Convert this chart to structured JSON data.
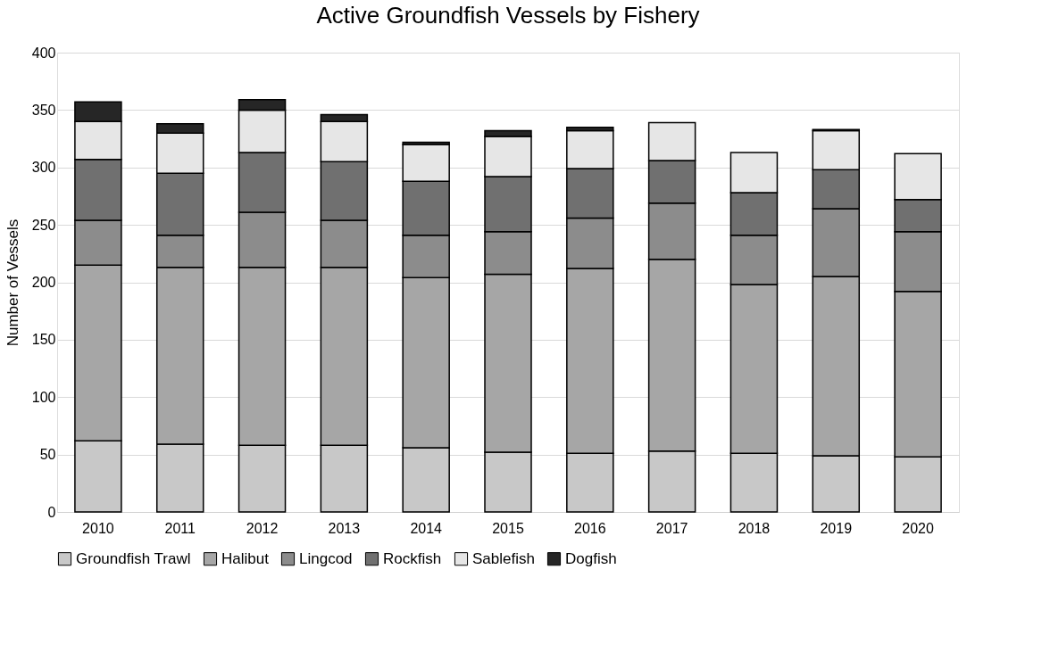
{
  "chart_data": {
    "type": "bar",
    "stacked": true,
    "title": "Active Groundfish Vessels by Fishery",
    "ylabel": "Number of Vessels",
    "categories": [
      "2010",
      "2011",
      "2012",
      "2013",
      "2014",
      "2015",
      "2016",
      "2017",
      "2018",
      "2019",
      "2020"
    ],
    "series": [
      {
        "name": "Groundfish Trawl",
        "color": "#c8c8c8",
        "values": [
          62,
          59,
          58,
          58,
          56,
          52,
          51,
          53,
          51,
          49,
          48
        ]
      },
      {
        "name": "Halibut",
        "color": "#a6a6a6",
        "values": [
          153,
          154,
          155,
          155,
          148,
          155,
          161,
          167,
          147,
          156,
          144
        ]
      },
      {
        "name": "Lingcod",
        "color": "#8c8c8c",
        "values": [
          39,
          28,
          48,
          41,
          37,
          37,
          44,
          49,
          43,
          59,
          52
        ]
      },
      {
        "name": "Rockfish",
        "color": "#707070",
        "values": [
          53,
          54,
          52,
          51,
          47,
          48,
          43,
          37,
          37,
          34,
          28
        ]
      },
      {
        "name": "Sablefish",
        "color": "#e6e6e6",
        "values": [
          33,
          35,
          37,
          35,
          32,
          35,
          33,
          33,
          35,
          34,
          40
        ]
      },
      {
        "name": "Dogfish",
        "color": "#262626",
        "values": [
          17,
          8,
          9,
          6,
          2,
          5,
          3,
          0,
          0,
          1,
          0
        ]
      }
    ],
    "ylim": [
      0,
      400
    ],
    "yticks": [
      0,
      50,
      100,
      150,
      200,
      250,
      300,
      350,
      400
    ],
    "grid": "y",
    "legend": "bottom"
  }
}
